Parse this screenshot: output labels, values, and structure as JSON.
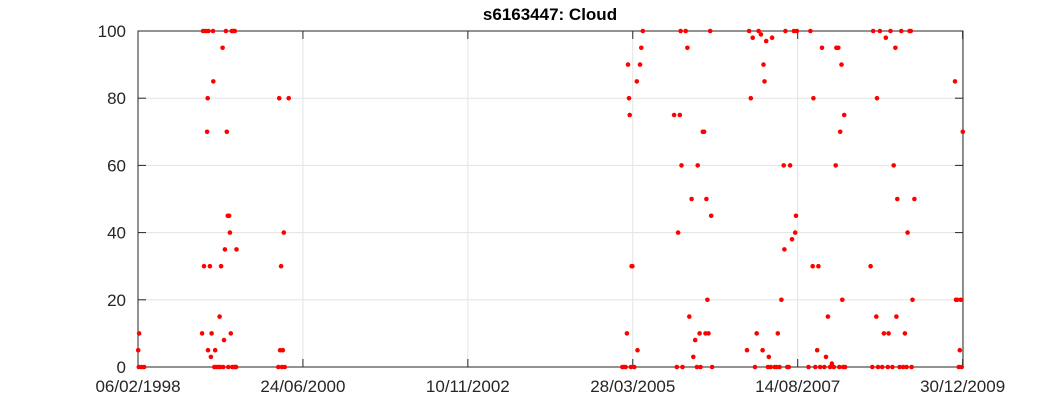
{
  "chart_data": {
    "type": "scatter",
    "title": "s6163447: Cloud",
    "xlabel": "",
    "ylabel": "",
    "x_axis_type": "date",
    "xlim": [
      "1998-02-06",
      "2010-01-01"
    ],
    "ylim": [
      0,
      100
    ],
    "x_ticks": [
      "1998-02-06",
      "2000-06-24",
      "2002-11-10",
      "2005-03-28",
      "2007-08-14",
      "2009-12-30"
    ],
    "x_tick_labels": [
      "06/02/1998",
      "24/06/2000",
      "10/11/2002",
      "28/03/2005",
      "14/08/2007",
      "30/12/2009"
    ],
    "y_ticks": [
      0,
      20,
      40,
      60,
      80,
      100
    ],
    "y_tick_labels": [
      "0",
      "20",
      "40",
      "60",
      "80",
      "100"
    ],
    "grid": true,
    "legend": "none",
    "marker_color": "#ff0000",
    "series": [
      {
        "points": [
          [
            "1998-02-07",
            5
          ],
          [
            "1998-02-12",
            10
          ],
          [
            "1998-02-10",
            0
          ],
          [
            "1998-02-25",
            0
          ],
          [
            "1998-03-10",
            0
          ],
          [
            "1999-01-15",
            100
          ],
          [
            "1999-01-28",
            100
          ],
          [
            "1999-02-12",
            100
          ],
          [
            "1999-03-08",
            100
          ],
          [
            "1999-01-10",
            10
          ],
          [
            "1999-01-20",
            30
          ],
          [
            "1999-02-05",
            70
          ],
          [
            "1999-02-08",
            80
          ],
          [
            "1999-02-20",
            30
          ],
          [
            "1999-02-10",
            5
          ],
          [
            "1999-03-01",
            10
          ],
          [
            "1999-03-10",
            85
          ],
          [
            "1999-02-25",
            3
          ],
          [
            "1999-03-20",
            5
          ],
          [
            "1999-03-15",
            0
          ],
          [
            "1999-03-25",
            0
          ],
          [
            "1999-04-05",
            0
          ],
          [
            "1999-04-12",
            15
          ],
          [
            "1999-04-20",
            30
          ],
          [
            "1999-04-28",
            95
          ],
          [
            "1999-05-05",
            8
          ],
          [
            "1999-05-10",
            35
          ],
          [
            "1999-05-15",
            100
          ],
          [
            "1999-05-20",
            70
          ],
          [
            "1999-05-25",
            45
          ],
          [
            "1999-06-01",
            45
          ],
          [
            "1999-06-05",
            40
          ],
          [
            "1999-06-10",
            10
          ],
          [
            "1999-06-15",
            100
          ],
          [
            "1999-06-22",
            100
          ],
          [
            "1999-07-01",
            100
          ],
          [
            "1999-07-05",
            0
          ],
          [
            "1999-07-10",
            35
          ],
          [
            "1999-04-15",
            0
          ],
          [
            "1999-05-01",
            0
          ],
          [
            "1999-05-28",
            0
          ],
          [
            "1999-06-18",
            0
          ],
          [
            "1999-06-28",
            0
          ],
          [
            "1999-07-08",
            0
          ],
          [
            "2000-02-15",
            0
          ],
          [
            "2000-02-20",
            80
          ],
          [
            "2000-02-25",
            5
          ],
          [
            "2000-03-01",
            30
          ],
          [
            "2000-03-05",
            0
          ],
          [
            "2000-03-10",
            5
          ],
          [
            "2000-03-15",
            40
          ],
          [
            "2000-03-20",
            0
          ],
          [
            "2000-04-10",
            80
          ],
          [
            "2005-02-01",
            0
          ],
          [
            "2005-02-10",
            0
          ],
          [
            "2005-02-18",
            0
          ],
          [
            "2005-02-25",
            10
          ],
          [
            "2005-03-03",
            90
          ],
          [
            "2005-03-08",
            80
          ],
          [
            "2005-03-12",
            75
          ],
          [
            "2005-03-18",
            0
          ],
          [
            "2005-03-22",
            30
          ],
          [
            "2005-03-26",
            30
          ],
          [
            "2005-04-05",
            0
          ],
          [
            "2005-04-18",
            85
          ],
          [
            "2005-04-22",
            5
          ],
          [
            "2005-05-05",
            90
          ],
          [
            "2005-05-12",
            95
          ],
          [
            "2005-05-20",
            100
          ],
          [
            "2005-11-01",
            75
          ],
          [
            "2005-11-15",
            0
          ],
          [
            "2005-11-22",
            40
          ],
          [
            "2005-12-01",
            75
          ],
          [
            "2005-12-05",
            100
          ],
          [
            "2005-12-10",
            60
          ],
          [
            "2005-12-15",
            0
          ],
          [
            "2006-01-01",
            100
          ],
          [
            "2006-01-10",
            95
          ],
          [
            "2006-01-20",
            15
          ],
          [
            "2006-02-01",
            50
          ],
          [
            "2006-02-10",
            3
          ],
          [
            "2006-02-20",
            8
          ],
          [
            "2006-03-01",
            0
          ],
          [
            "2006-03-05",
            60
          ],
          [
            "2006-03-15",
            10
          ],
          [
            "2006-03-20",
            0
          ],
          [
            "2006-04-01",
            70
          ],
          [
            "2006-04-08",
            70
          ],
          [
            "2006-04-15",
            10
          ],
          [
            "2006-04-20",
            50
          ],
          [
            "2006-04-25",
            20
          ],
          [
            "2006-05-01",
            10
          ],
          [
            "2006-05-10",
            100
          ],
          [
            "2006-05-15",
            45
          ],
          [
            "2006-05-20",
            0
          ],
          [
            "2006-11-20",
            5
          ],
          [
            "2006-12-01",
            100
          ],
          [
            "2006-12-10",
            80
          ],
          [
            "2006-12-20",
            98
          ],
          [
            "2007-01-01",
            0
          ],
          [
            "2007-01-10",
            10
          ],
          [
            "2007-01-20",
            100
          ],
          [
            "2007-02-01",
            99
          ],
          [
            "2007-02-10",
            5
          ],
          [
            "2007-02-15",
            90
          ],
          [
            "2007-02-20",
            85
          ],
          [
            "2007-03-01",
            97
          ],
          [
            "2007-03-10",
            0
          ],
          [
            "2007-03-15",
            3
          ],
          [
            "2007-03-25",
            0
          ],
          [
            "2007-04-01",
            98
          ],
          [
            "2007-04-15",
            0
          ],
          [
            "2007-04-25",
            0
          ],
          [
            "2007-05-01",
            10
          ],
          [
            "2007-05-10",
            0
          ],
          [
            "2007-05-20",
            20
          ],
          [
            "2007-06-01",
            60
          ],
          [
            "2007-06-05",
            35
          ],
          [
            "2007-06-10",
            100
          ],
          [
            "2007-06-20",
            0
          ],
          [
            "2007-06-28",
            0
          ],
          [
            "2007-07-05",
            60
          ],
          [
            "2007-07-15",
            38
          ],
          [
            "2007-07-25",
            100
          ],
          [
            "2007-08-01",
            40
          ],
          [
            "2007-08-05",
            45
          ],
          [
            "2007-08-10",
            100
          ],
          [
            "2007-10-10",
            0
          ],
          [
            "2007-10-20",
            100
          ],
          [
            "2007-11-01",
            30
          ],
          [
            "2007-11-05",
            80
          ],
          [
            "2007-11-15",
            0
          ],
          [
            "2007-11-25",
            5
          ],
          [
            "2007-12-01",
            30
          ],
          [
            "2007-12-10",
            0
          ],
          [
            "2007-12-20",
            95
          ],
          [
            "2008-01-01",
            0
          ],
          [
            "2008-01-10",
            3
          ],
          [
            "2008-01-20",
            15
          ],
          [
            "2008-02-01",
            0
          ],
          [
            "2008-02-10",
            1
          ],
          [
            "2008-02-20",
            0
          ],
          [
            "2008-03-01",
            60
          ],
          [
            "2008-03-05",
            95
          ],
          [
            "2008-03-15",
            95
          ],
          [
            "2008-03-20",
            0
          ],
          [
            "2008-03-25",
            70
          ],
          [
            "2008-04-01",
            90
          ],
          [
            "2008-04-05",
            20
          ],
          [
            "2008-04-10",
            0
          ],
          [
            "2008-04-15",
            75
          ],
          [
            "2008-04-20",
            0
          ],
          [
            "2008-09-01",
            30
          ],
          [
            "2008-09-10",
            0
          ],
          [
            "2008-09-15",
            100
          ],
          [
            "2008-10-01",
            15
          ],
          [
            "2008-10-05",
            80
          ],
          [
            "2008-10-10",
            0
          ],
          [
            "2008-10-20",
            100
          ],
          [
            "2008-11-01",
            0
          ],
          [
            "2008-11-10",
            10
          ],
          [
            "2008-11-20",
            98
          ],
          [
            "2008-12-01",
            0
          ],
          [
            "2008-12-05",
            10
          ],
          [
            "2008-12-15",
            100
          ],
          [
            "2008-12-25",
            0
          ],
          [
            "2009-01-01",
            60
          ],
          [
            "2009-01-10",
            95
          ],
          [
            "2009-01-15",
            15
          ],
          [
            "2009-01-20",
            50
          ],
          [
            "2009-02-01",
            0
          ],
          [
            "2009-02-10",
            100
          ],
          [
            "2009-02-20",
            0
          ],
          [
            "2009-03-01",
            10
          ],
          [
            "2009-03-10",
            0
          ],
          [
            "2009-03-15",
            40
          ],
          [
            "2009-03-25",
            100
          ],
          [
            "2009-04-01",
            100
          ],
          [
            "2009-04-05",
            0
          ],
          [
            "2009-04-10",
            20
          ],
          [
            "2009-04-20",
            50
          ],
          [
            "2009-11-20",
            85
          ],
          [
            "2009-11-25",
            20
          ],
          [
            "2009-12-01",
            20
          ],
          [
            "2009-12-10",
            0
          ],
          [
            "2009-12-15",
            5
          ],
          [
            "2009-12-20",
            20
          ],
          [
            "2009-12-25",
            0
          ],
          [
            "2009-12-31",
            70
          ]
        ]
      }
    ]
  }
}
